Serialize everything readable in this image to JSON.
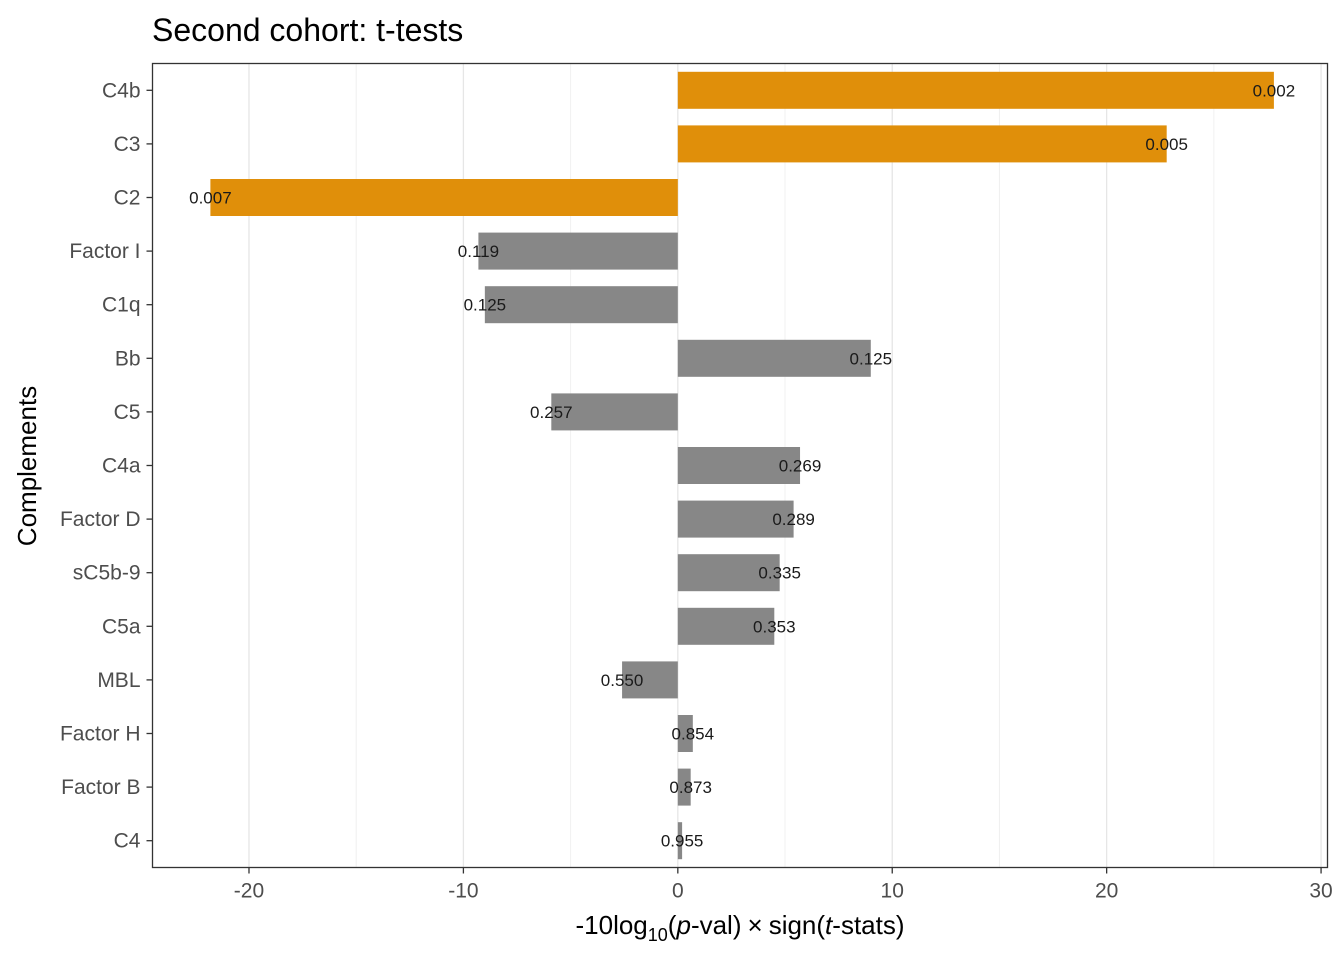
{
  "chart_data": {
    "type": "bar",
    "orientation": "horizontal",
    "title": "Second cohort: t-tests",
    "ylabel": "Complements",
    "xlabel": {
      "prefix": "-10log",
      "subscript": "10",
      "p_open": "(",
      "p_var": "p",
      "p_rest": "-val)",
      "times": "×",
      "sign_open": "sign(",
      "t_var": "t",
      "t_rest": "-stats)"
    },
    "xlim": [
      -24.5,
      30.3
    ],
    "xticks": [
      -20,
      -10,
      0,
      10,
      20,
      30
    ],
    "minor_gridlines": [
      -15,
      -5,
      5,
      15,
      25
    ],
    "grid": true,
    "legend": "none",
    "colors": {
      "significant": "#E08F0A",
      "not_significant": "#878787"
    },
    "categories": [
      "C4b",
      "C3",
      "C2",
      "Factor I",
      "C1q",
      "Bb",
      "C5",
      "C4a",
      "Factor D",
      "sC5b-9",
      "C5a",
      "MBL",
      "Factor H",
      "Factor B",
      "C4"
    ],
    "values": [
      27.8,
      22.8,
      -21.8,
      -9.3,
      -9.0,
      9.0,
      -5.9,
      5.7,
      5.4,
      4.75,
      4.5,
      -2.6,
      0.7,
      0.6,
      0.2
    ],
    "labels": [
      "0.002",
      "0.005",
      "0.007",
      "0.119",
      "0.125",
      "0.125",
      "0.257",
      "0.269",
      "0.289",
      "0.335",
      "0.353",
      "0.550",
      "0.854",
      "0.873",
      "0.955"
    ],
    "significant": [
      true,
      true,
      true,
      false,
      false,
      false,
      false,
      false,
      false,
      false,
      false,
      false,
      false,
      false,
      false
    ]
  }
}
